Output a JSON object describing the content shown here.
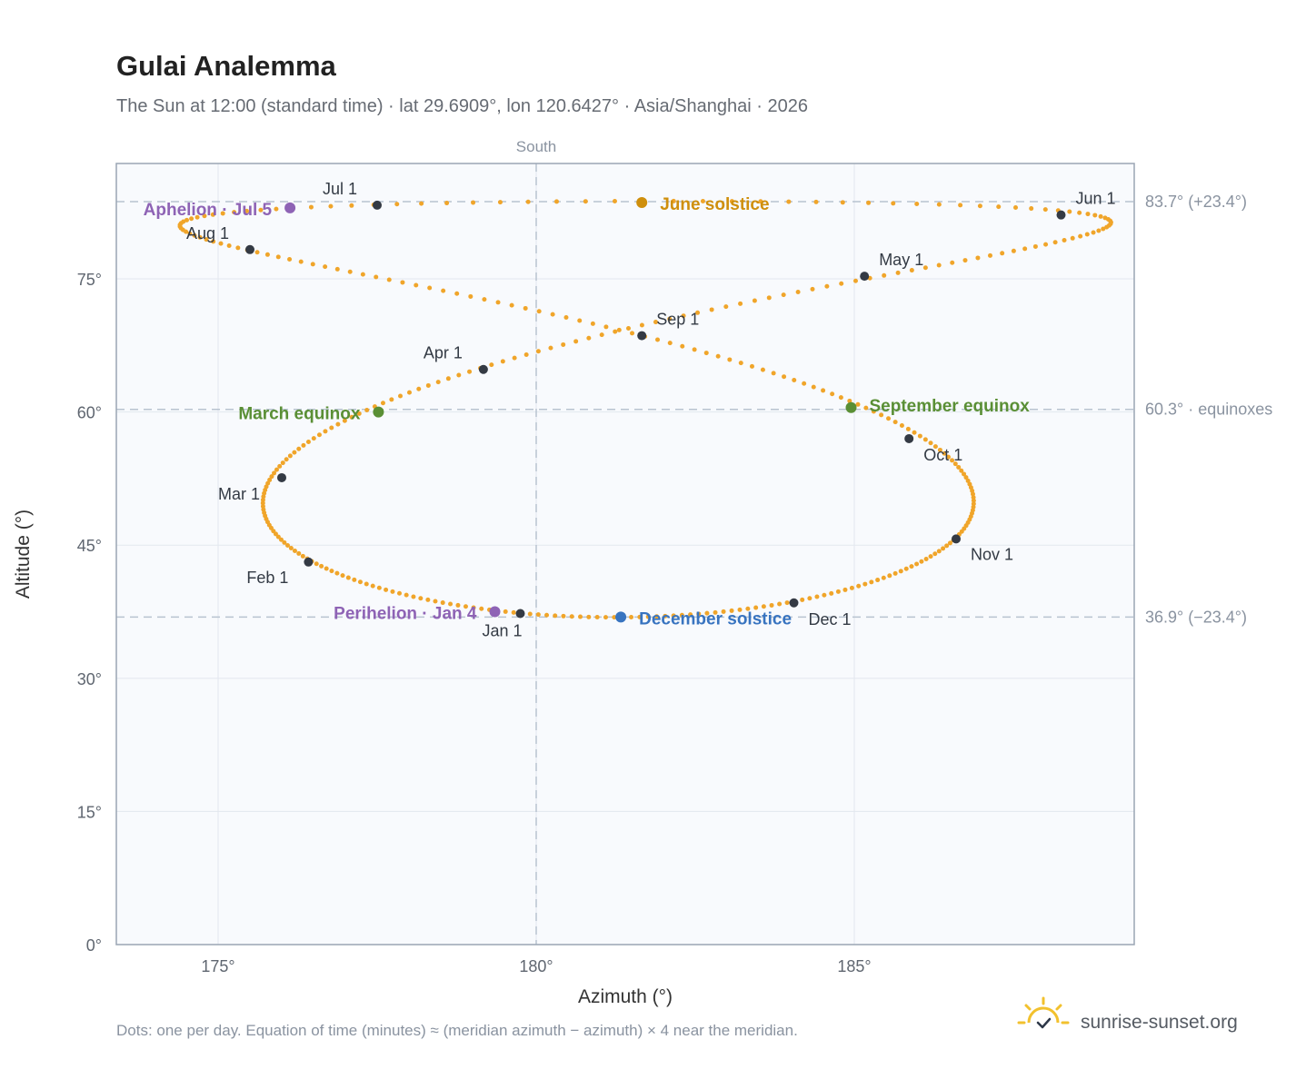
{
  "title": "Gulai Analemma",
  "subtitle": "The Sun at 12:00 (standard time) · lat 29.6909°, lon 120.6427° · Asia/Shanghai · 2026",
  "colors": {
    "curve": "#f0a52a",
    "month_dot": "#343a44",
    "apsis": "#8e63b5",
    "equinox": "#5a8f35",
    "june_solstice": "#cf8f0c",
    "december_solstice": "#3874c0",
    "plot_bg": "#f8fafd",
    "grid": "#e2e7ee",
    "frame": "#9aa5b4",
    "ref_line": "#b8c3d0"
  },
  "chart_data": {
    "type": "scatter",
    "xlabel": "Azimuth (°)",
    "ylabel": "Altitude (°)",
    "xlim": [
      173.4,
      189.4
    ],
    "ylim": [
      0,
      88
    ],
    "xticks": [
      175,
      180,
      185
    ],
    "xtick_labels": [
      "175°",
      "180°",
      "185°"
    ],
    "yticks": [
      0,
      15,
      30,
      45,
      60,
      75
    ],
    "ytick_labels": [
      "0°",
      "15°",
      "30°",
      "45°",
      "60°",
      "75°"
    ],
    "grid": true,
    "meridian": {
      "azimuth": 180,
      "label": "South"
    },
    "reference_lines": [
      {
        "altitude": 83.7,
        "label": "83.7° (+23.4°)"
      },
      {
        "altitude": 60.3,
        "label": "60.3° · equinoxes"
      },
      {
        "altitude": 36.9,
        "label": "36.9° (−23.4°)"
      }
    ],
    "month_markers": [
      {
        "label": "Jan 1",
        "azimuth": 179.75,
        "altitude": 37.3
      },
      {
        "label": "Feb 1",
        "azimuth": 176.42,
        "altitude": 43.1
      },
      {
        "label": "Mar 1",
        "azimuth": 176.0,
        "altitude": 52.6
      },
      {
        "label": "Apr 1",
        "azimuth": 179.17,
        "altitude": 64.8
      },
      {
        "label": "May 1",
        "azimuth": 185.16,
        "altitude": 75.3
      },
      {
        "label": "Jun 1",
        "azimuth": 188.25,
        "altitude": 82.2
      },
      {
        "label": "Jul 1",
        "azimuth": 177.5,
        "altitude": 83.3
      },
      {
        "label": "Aug 1",
        "azimuth": 175.5,
        "altitude": 78.3
      },
      {
        "label": "Sep 1",
        "azimuth": 181.66,
        "altitude": 68.6
      },
      {
        "label": "Oct 1",
        "azimuth": 185.86,
        "altitude": 57.0
      },
      {
        "label": "Nov 1",
        "azimuth": 186.6,
        "altitude": 45.7
      },
      {
        "label": "Dec 1",
        "azimuth": 184.05,
        "altitude": 38.5
      }
    ],
    "events": [
      {
        "label": "June solstice",
        "azimuth": 181.66,
        "altitude": 83.6,
        "color_key": "june_solstice"
      },
      {
        "label": "December solstice",
        "azimuth": 181.33,
        "altitude": 36.9,
        "color_key": "december_solstice"
      },
      {
        "label": "March equinox",
        "azimuth": 177.52,
        "altitude": 60.0,
        "color_key": "equinox"
      },
      {
        "label": "September equinox",
        "azimuth": 184.95,
        "altitude": 60.5,
        "color_key": "equinox"
      },
      {
        "label": "Aphelion · Jul 5",
        "azimuth": 176.13,
        "altitude": 83.0,
        "color_key": "apsis"
      },
      {
        "label": "Perihelion · Jan 4",
        "azimuth": 179.35,
        "altitude": 37.5,
        "color_key": "apsis"
      }
    ]
  },
  "footer_note": "Dots: one per day. Equation of time (minutes) ≈ (meridian azimuth − azimuth) × 4 near the meridian.",
  "brand": {
    "name": "sunrise-sunset.org",
    "icon": "sun-logo-icon"
  }
}
